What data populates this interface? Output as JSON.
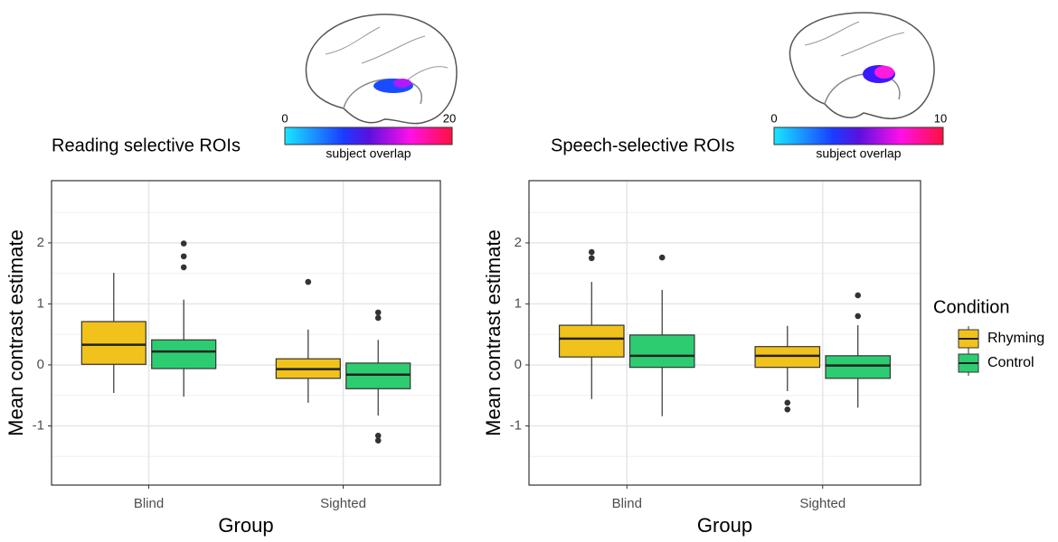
{
  "chart_data": [
    {
      "type": "box",
      "title": "Reading selective ROIs",
      "xlabel": "Group",
      "ylabel": "Mean contrast estimate",
      "categories": [
        "Blind",
        "Sighted"
      ],
      "ylim": [
        -1.97,
        3.02
      ],
      "yticks": [
        -1,
        0,
        1,
        2
      ],
      "grid": true,
      "colorbar": {
        "min": 0,
        "max": 20,
        "label": "subject overlap"
      },
      "series": [
        {
          "name": "Rhyming",
          "color": "#f1c21b",
          "values": [
            {
              "whislo": -0.46,
              "q1": 0.01,
              "med": 0.33,
              "q3": 0.71,
              "whishi": 1.51,
              "fliers": []
            },
            {
              "whislo": -0.62,
              "q1": -0.22,
              "med": -0.07,
              "q3": 0.1,
              "whishi": 0.58,
              "fliers": [
                1.36
              ]
            }
          ]
        },
        {
          "name": "Control",
          "color": "#2ecc71",
          "values": [
            {
              "whislo": -0.52,
              "q1": -0.06,
              "med": 0.22,
              "q3": 0.41,
              "whishi": 1.07,
              "fliers": [
                1.99,
                1.78,
                1.6
              ]
            },
            {
              "whislo": -0.83,
              "q1": -0.39,
              "med": -0.16,
              "q3": 0.03,
              "whishi": 0.41,
              "fliers": [
                0.86,
                0.77,
                -1.16,
                -1.24
              ]
            }
          ]
        }
      ]
    },
    {
      "type": "box",
      "title": "Speech-selective ROIs",
      "xlabel": "Group",
      "ylabel": "Mean contrast estimate",
      "categories": [
        "Blind",
        "Sighted"
      ],
      "ylim": [
        -1.97,
        3.02
      ],
      "yticks": [
        -1,
        0,
        1,
        2
      ],
      "grid": true,
      "colorbar": {
        "min": 0,
        "max": 10,
        "label": "subject overlap"
      },
      "series": [
        {
          "name": "Rhyming",
          "color": "#f1c21b",
          "values": [
            {
              "whislo": -0.56,
              "q1": 0.13,
              "med": 0.43,
              "q3": 0.65,
              "whishi": 1.36,
              "fliers": [
                1.85,
                1.75
              ]
            },
            {
              "whislo": -0.43,
              "q1": -0.04,
              "med": 0.15,
              "q3": 0.3,
              "whishi": 0.64,
              "fliers": [
                -0.62,
                -0.73
              ]
            }
          ]
        },
        {
          "name": "Control",
          "color": "#2ecc71",
          "values": [
            {
              "whislo": -0.84,
              "q1": -0.04,
              "med": 0.15,
              "q3": 0.49,
              "whishi": 1.23,
              "fliers": [
                1.76
              ]
            },
            {
              "whislo": -0.7,
              "q1": -0.22,
              "med": -0.01,
              "q3": 0.15,
              "whishi": 0.65,
              "fliers": [
                1.14,
                0.8
              ]
            }
          ]
        }
      ]
    }
  ],
  "legend": {
    "title": "Condition",
    "position": "right"
  }
}
